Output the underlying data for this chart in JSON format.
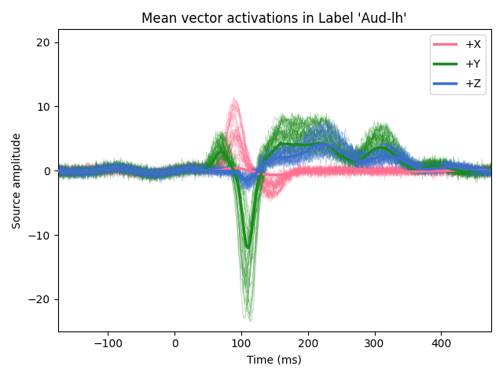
{
  "title": "Mean vector activations in Label 'Aud-lh'",
  "xlabel": "Time (ms)",
  "ylabel": "Source amplitude",
  "xlim": [
    -175,
    475
  ],
  "ylim": [
    -25,
    22
  ],
  "colors": {
    "X": "#FF7092",
    "Y": "#1A8C1A",
    "Z": "#3B6FCC"
  },
  "mean_linewidth": 2.5,
  "thin_linewidth": 0.6,
  "thin_alpha": 0.35,
  "n_thin_lines": 30,
  "time_start": -175,
  "time_end": 475,
  "n_timepoints": 651,
  "seed": 42,
  "bg_color": "#f0f0f0"
}
